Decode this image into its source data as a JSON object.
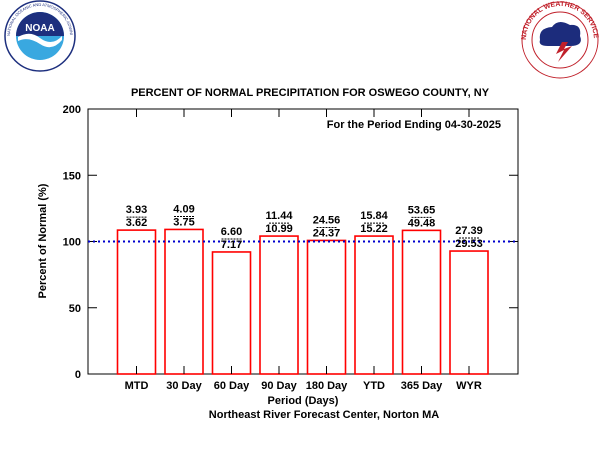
{
  "logos": {
    "noaa": {
      "text": "NOAA",
      "ring_text": "NATIONAL OCEANIC AND ATMOSPHERIC ADMINISTRATION · U.S. DEPARTMENT OF COMMERCE",
      "colors": {
        "ring": "#ffffff",
        "top": "#1d2f7e",
        "bottom": "#39a8e0",
        "gull": "#ffffff"
      }
    },
    "nws": {
      "ring_text": "NATIONAL WEATHER SERVICE",
      "colors": {
        "ring": "#c0202a",
        "inner": "#ffffff",
        "cloud": "#1c2c7c",
        "bolt": "#c0202a"
      }
    }
  },
  "chart_data": {
    "type": "bar",
    "title": "PERCENT OF NORMAL PRECIPITATION FOR OSWEGO COUNTY, NY",
    "subtitle": "For the Period Ending 04-30-2025",
    "xlabel": "Period (Days)",
    "ylabel": "Percent of Normal (%)",
    "credit": "Northeast River Forecast Center, Norton MA",
    "ylim": [
      0,
      200
    ],
    "yticks": [
      0,
      50,
      100,
      150,
      200
    ],
    "reference_line": 100,
    "categories": [
      "MTD",
      "30 Day",
      "60 Day",
      "90 Day",
      "180 Day",
      "YTD",
      "365 Day",
      "WYR"
    ],
    "values": [
      108.6,
      109.1,
      92.1,
      104.1,
      100.8,
      104.1,
      108.4,
      92.8
    ],
    "observed": [
      "3.93",
      "4.09",
      "6.60",
      "11.44",
      "24.56",
      "15.84",
      "53.65",
      "27.39"
    ],
    "normal": [
      "3.62",
      "3.75",
      "7.17",
      "10.99",
      "24.37",
      "15.22",
      "49.48",
      "29.53"
    ],
    "colors": {
      "bar": "#ff0000",
      "reference": "#0000cc",
      "axis": "#000000"
    },
    "grid": false,
    "legend": "none"
  }
}
